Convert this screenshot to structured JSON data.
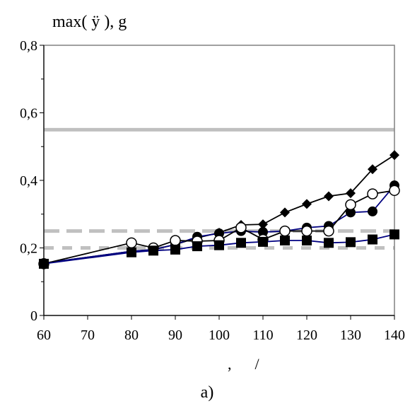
{
  "chart_data": {
    "type": "line",
    "title": "max( ÿ   ), g",
    "xlabel": ",      /",
    "ylabel": "",
    "caption": "a)",
    "xlim": [
      60,
      140
    ],
    "ylim": [
      0,
      0.8
    ],
    "x_ticks": [
      60,
      70,
      80,
      90,
      100,
      110,
      120,
      130,
      140
    ],
    "y_ticks": [
      0,
      0.2,
      0.4,
      0.6,
      0.8
    ],
    "x_tick_labels": [
      "60",
      "70",
      "80",
      "90",
      "100",
      "110",
      "120",
      "130",
      "140"
    ],
    "y_tick_labels": [
      "0",
      "0,2",
      "0,4",
      "0,6",
      "0,8"
    ],
    "grid": false,
    "legend": "none",
    "series": [
      {
        "marker": "diamond",
        "color": "#000000",
        "x": [
          60,
          80,
          85,
          90,
          95,
          100,
          105,
          110,
          115,
          120,
          125,
          130,
          135,
          140
        ],
        "y": [
          0.155,
          0.19,
          0.195,
          0.21,
          0.23,
          0.245,
          0.268,
          0.27,
          0.305,
          0.33,
          0.353,
          0.362,
          0.433,
          0.475
        ]
      },
      {
        "marker": "filled-circle",
        "color": "#000080",
        "x": [
          60,
          80,
          85,
          90,
          95,
          100,
          105,
          110,
          115,
          120,
          125,
          130,
          135,
          140
        ],
        "y": [
          0.155,
          0.19,
          0.195,
          0.21,
          0.233,
          0.243,
          0.25,
          0.247,
          0.25,
          0.26,
          0.265,
          0.305,
          0.308,
          0.385
        ]
      },
      {
        "marker": "open-circle",
        "color": "#000000",
        "x": [
          60,
          80,
          85,
          90,
          95,
          100,
          105,
          110,
          115,
          120,
          125,
          130,
          135,
          140
        ],
        "y": [
          0.153,
          0.215,
          0.2,
          0.222,
          0.22,
          0.222,
          0.26,
          0.225,
          0.25,
          0.25,
          0.25,
          0.328,
          0.36,
          0.37
        ]
      },
      {
        "marker": "filled-square",
        "color": "#000080",
        "x": [
          60,
          80,
          85,
          90,
          95,
          100,
          105,
          110,
          115,
          120,
          125,
          130,
          135,
          140
        ],
        "y": [
          0.153,
          0.187,
          0.192,
          0.195,
          0.205,
          0.208,
          0.215,
          0.218,
          0.222,
          0.222,
          0.215,
          0.217,
          0.225,
          0.24
        ]
      }
    ],
    "reference_lines": [
      {
        "y": 0.55,
        "style": "solid",
        "color": "#c0c0c0"
      },
      {
        "y": 0.25,
        "style": "dashed",
        "color": "#c0c0c0"
      },
      {
        "y": 0.2,
        "style": "dashed",
        "color": "#c0c0c0"
      }
    ]
  }
}
